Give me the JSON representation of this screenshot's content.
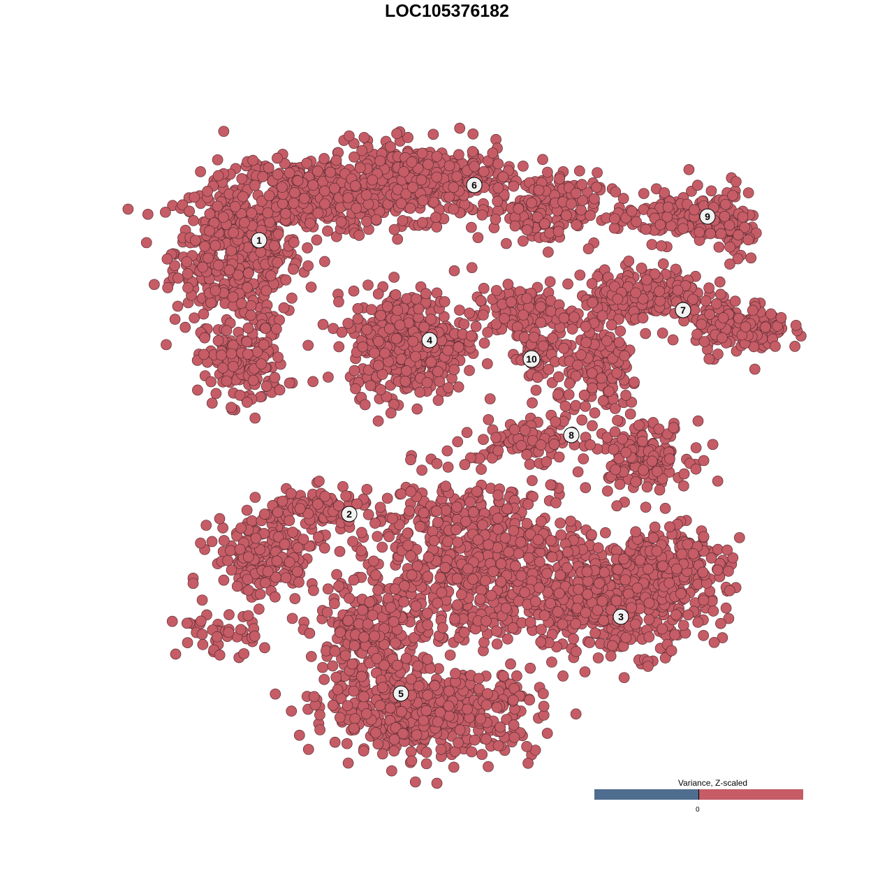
{
  "chart_data": {
    "type": "scatter",
    "title": "LOC105376182",
    "xlabel": "",
    "ylabel": "",
    "grid": false,
    "axes_visible": false,
    "point_color": "#c55c66",
    "point_edge_color": "#5b2c31",
    "clusters": [
      {
        "label": "1",
        "label_pos": [
          -26.9,
          29.6
        ],
        "components": [
          {
            "center": [
              -30,
              28
            ],
            "spread": [
              6,
              7
            ],
            "n": 500
          },
          {
            "center": [
              -19,
              36
            ],
            "spread": [
              7,
              3.5
            ],
            "n": 320
          },
          {
            "center": [
              -29,
              12
            ],
            "spread": [
              4,
              4
            ],
            "n": 150
          }
        ]
      },
      {
        "label": "6",
        "label_pos": [
          3.9,
          37.5
        ],
        "components": [
          {
            "center": [
              -4,
              38
            ],
            "spread": [
              9,
              3.5
            ],
            "n": 450
          },
          {
            "center": [
              14,
              34
            ],
            "spread": [
              5,
              3.5
            ],
            "n": 160
          }
        ]
      },
      {
        "label": "4",
        "label_pos": [
          -2.5,
          15.3
        ],
        "components": [
          {
            "center": [
              -5.5,
              15
            ],
            "spread": [
              5.5,
              5
            ],
            "n": 450
          }
        ]
      },
      {
        "label": "10",
        "label_pos": [
          12.1,
          12.6
        ],
        "components": [
          {
            "center": [
              11,
              19
            ],
            "spread": [
              5,
              2.5
            ],
            "n": 120
          },
          {
            "center": [
              12.5,
              13
            ],
            "spread": [
              2,
              3
            ],
            "n": 60
          }
        ]
      },
      {
        "label": "9",
        "label_pos": [
          37.3,
          33.0
        ],
        "components": [
          {
            "center": [
              33,
              33
            ],
            "spread": [
              6,
              2.5
            ],
            "n": 150
          },
          {
            "center": [
              41,
              32
            ],
            "spread": [
              2,
              4
            ],
            "n": 60
          }
        ]
      },
      {
        "label": "7",
        "label_pos": [
          33.8,
          19.6
        ],
        "components": [
          {
            "center": [
              28,
              22
            ],
            "spread": [
              6,
              2.5
            ],
            "n": 200
          },
          {
            "center": [
              42,
              17
            ],
            "spread": [
              4.5,
              2.5
            ],
            "n": 150
          }
        ]
      },
      {
        "label": "8",
        "label_pos": [
          17.8,
          1.7
        ],
        "components": [
          {
            "center": [
              22,
              11
            ],
            "spread": [
              4,
              5
            ],
            "n": 150
          },
          {
            "center": [
              28,
              -1
            ],
            "spread": [
              4.5,
              3
            ],
            "n": 150
          },
          {
            "center": [
              12,
              1
            ],
            "spread": [
              5,
              2
            ],
            "n": 80
          }
        ]
      },
      {
        "label": "2",
        "label_pos": [
          -14.0,
          -9.6
        ],
        "components": [
          {
            "center": [
              -26,
              -16
            ],
            "spread": [
              5,
              4
            ],
            "n": 200
          },
          {
            "center": [
              -19,
              -9
            ],
            "spread": [
              5,
              2
            ],
            "n": 120
          },
          {
            "center": [
              -33,
              -27
            ],
            "spread": [
              4,
              2
            ],
            "n": 40
          }
        ]
      },
      {
        "label": "3",
        "label_pos": [
          24.9,
          -24.3
        ],
        "components": [
          {
            "center": [
              24,
              -22
            ],
            "spread": [
              9,
              5
            ],
            "n": 450
          },
          {
            "center": [
              31,
              -17
            ],
            "spread": [
              6,
              4
            ],
            "n": 200
          }
        ]
      },
      {
        "label": "5",
        "label_pos": [
          -6.6,
          -35.3
        ],
        "components": [
          {
            "center": [
              -2,
              -38
            ],
            "spread": [
              10,
              4
            ],
            "n": 500
          },
          {
            "center": [
              -11,
              -28
            ],
            "spread": [
              5,
              6
            ],
            "n": 250
          }
        ]
      },
      {
        "label": "",
        "label_pos": null,
        "components": [
          {
            "center": [
              4,
              -16
            ],
            "spread": [
              11,
              8
            ],
            "n": 700
          }
        ]
      }
    ],
    "legend": {
      "title": "Variance, Z-scaled",
      "tick_label": "0",
      "low_color": "#4f6d8f",
      "high_color": "#c55c66",
      "placement": "bottom-right"
    }
  }
}
